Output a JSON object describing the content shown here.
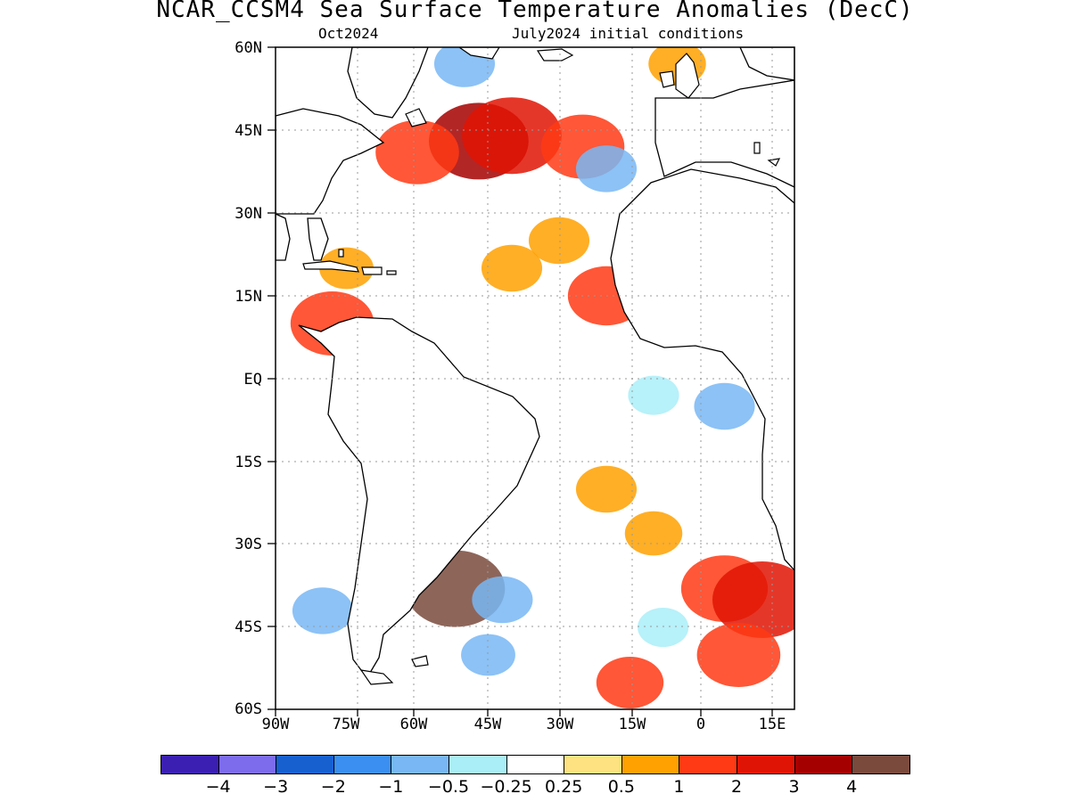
{
  "title": "NCAR_CCSM4 Sea Surface Temperature Anomalies (DecC)",
  "subtitle_left": "Oct2024",
  "subtitle_right": "July2024 initial conditions",
  "lat_labels": [
    "60N",
    "45N",
    "30N",
    "15N",
    "EQ",
    "15S",
    "30S",
    "45S",
    "60S"
  ],
  "lon_labels": [
    "90W",
    "75W",
    "60W",
    "45W",
    "30W",
    "15W",
    "0",
    "15E"
  ],
  "colorbar": {
    "colors": [
      "#3b1fb2",
      "#7d6ceb",
      "#1660d0",
      "#3a8ff0",
      "#78b7f4",
      "#aaeef8",
      "#ffffff",
      "#fee181",
      "#ffa100",
      "#ff3a14",
      "#e01404",
      "#a40000",
      "#7a4a3c"
    ],
    "labels": [
      "−4",
      "−3",
      "−2",
      "−1",
      "−0.5",
      "−0.25",
      "0.25",
      "0.5",
      "1",
      "2",
      "3",
      "4"
    ]
  },
  "chart_data": {
    "type": "heatmap",
    "variable": "Sea Surface Temperature Anomalies",
    "units": "DecC",
    "region": {
      "lon": [
        -90,
        20
      ],
      "lat": [
        -60,
        60
      ]
    },
    "contour_levels": [
      -4,
      -3,
      -2,
      -1,
      -0.5,
      -0.25,
      0.25,
      0.5,
      1,
      2,
      3,
      4
    ],
    "anomaly_features": [
      {
        "lon": -47,
        "lat": 43,
        "value": 3.5
      },
      {
        "lon": -40,
        "lat": 44,
        "value": 2
      },
      {
        "lon": -60,
        "lat": 41,
        "value": 1.5
      },
      {
        "lon": -25,
        "lat": 42,
        "value": 1.5
      },
      {
        "lon": -30,
        "lat": 25,
        "value": 0.8
      },
      {
        "lon": -40,
        "lat": 20,
        "value": 0.8
      },
      {
        "lon": -20,
        "lat": 15,
        "value": 1.3
      },
      {
        "lon": -75,
        "lat": 20,
        "value": 0.6
      },
      {
        "lon": -78,
        "lat": 10,
        "value": 1.5
      },
      {
        "lon": -50,
        "lat": 57,
        "value": -0.8
      },
      {
        "lon": -20,
        "lat": 38,
        "value": -0.8
      },
      {
        "lon": -5,
        "lat": 57,
        "value": 0.7
      },
      {
        "lon": 5,
        "lat": -5,
        "value": -0.8
      },
      {
        "lon": -10,
        "lat": -3,
        "value": -0.5
      },
      {
        "lon": -20,
        "lat": -20,
        "value": 0.8
      },
      {
        "lon": -10,
        "lat": -28,
        "value": 0.7
      },
      {
        "lon": 5,
        "lat": -38,
        "value": 1.6
      },
      {
        "lon": 13,
        "lat": -40,
        "value": 2
      },
      {
        "lon": 8,
        "lat": -50,
        "value": 1.5
      },
      {
        "lon": -52,
        "lat": -38,
        "value": 4.5
      },
      {
        "lon": -42,
        "lat": -40,
        "value": -0.8
      },
      {
        "lon": -45,
        "lat": -50,
        "value": -0.6
      },
      {
        "lon": -80,
        "lat": -42,
        "value": -0.8
      },
      {
        "lon": -15,
        "lat": -55,
        "value": 1
      },
      {
        "lon": -8,
        "lat": -45,
        "value": -0.5
      }
    ]
  }
}
